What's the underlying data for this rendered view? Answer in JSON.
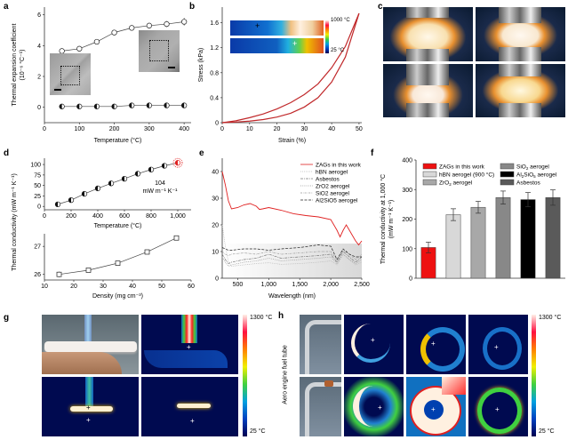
{
  "panel_labels": [
    "a",
    "b",
    "c",
    "d",
    "e",
    "f",
    "g",
    "h"
  ],
  "chart_data": [
    {
      "id": "a",
      "type": "line",
      "title": "",
      "xlabel": "Temperature (°C)",
      "ylabel": "Thermal expansion coefficient",
      "ylabel2": "(10⁻⁶ °C⁻¹)",
      "xlim": [
        0,
        420
      ],
      "ylim": [
        -1,
        6.5
      ],
      "xticks": [
        0,
        100,
        200,
        300,
        400
      ],
      "yticks": [
        0,
        2,
        4,
        6
      ],
      "series": [
        {
          "name": "upper",
          "marker": "open-circle",
          "x": [
            50,
            100,
            150,
            200,
            250,
            300,
            350,
            400
          ],
          "y": [
            3.65,
            3.8,
            4.25,
            4.85,
            5.15,
            5.3,
            5.4,
            5.55
          ],
          "err": [
            0.15,
            0.15,
            0.15,
            0.15,
            0.15,
            0.15,
            0.2,
            0.25
          ]
        },
        {
          "name": "lower",
          "marker": "half-filled-circle",
          "x": [
            50,
            100,
            150,
            200,
            250,
            300,
            350,
            400
          ],
          "y": [
            0.05,
            0.05,
            0.05,
            0.05,
            0.12,
            0.12,
            0.12,
            0.12
          ]
        }
      ]
    },
    {
      "id": "b",
      "type": "line",
      "xlabel": "Strain (%)",
      "ylabel": "Stress (kPa)",
      "xlim": [
        0,
        51
      ],
      "ylim": [
        0,
        1.85
      ],
      "xticks": [
        0,
        10,
        20,
        30,
        40,
        50
      ],
      "yticks": [
        0,
        0.4,
        0.8,
        1.2,
        1.6
      ],
      "inset_colorbar": {
        "max": "1000 °C",
        "min": "25 °C"
      },
      "series": [
        {
          "name": "loading",
          "x": [
            0,
            5,
            10,
            15,
            20,
            25,
            30,
            35,
            40,
            45,
            50
          ],
          "y": [
            0,
            0.01,
            0.025,
            0.05,
            0.09,
            0.15,
            0.25,
            0.4,
            0.65,
            1.05,
            1.75
          ]
        },
        {
          "name": "unloading",
          "x": [
            0,
            5,
            10,
            15,
            20,
            25,
            30,
            35,
            40,
            45,
            50
          ],
          "y": [
            0,
            0.03,
            0.08,
            0.14,
            0.22,
            0.32,
            0.45,
            0.62,
            0.88,
            1.22,
            1.75
          ]
        }
      ]
    },
    {
      "id": "d-top",
      "type": "line",
      "xlabel": "Temperature (°C)",
      "ylabel": "Thermal conductivity (mW m⁻¹ K⁻¹)",
      "xlim": [
        0,
        1100
      ],
      "ylim": [
        -8,
        115
      ],
      "xticks": [
        0,
        200,
        400,
        600,
        800,
        1000
      ],
      "xticklabels": [
        "0",
        "200",
        "400",
        "600",
        "800",
        "1,000"
      ],
      "yticks": [
        0,
        25,
        50,
        75,
        100
      ],
      "annotation": {
        "value": "104",
        "unit": "mW m⁻¹ K⁻¹"
      },
      "series": [
        {
          "name": "ZAG",
          "x": [
            100,
            200,
            300,
            400,
            500,
            600,
            700,
            800,
            900,
            1000
          ],
          "y": [
            5,
            15,
            30,
            43,
            55,
            66,
            78,
            88,
            97,
            104
          ]
        }
      ]
    },
    {
      "id": "d-bottom",
      "type": "line",
      "xlabel": "Density (mg cm⁻³)",
      "ylabel": "",
      "xlim": [
        10,
        60
      ],
      "ylim": [
        25.8,
        27.45
      ],
      "xticks": [
        10,
        20,
        30,
        40,
        50,
        60
      ],
      "yticks": [
        26,
        27
      ],
      "series": [
        {
          "name": "density",
          "marker": "open-square",
          "x": [
            15,
            25,
            35,
            45,
            55
          ],
          "y": [
            26.0,
            26.15,
            26.4,
            26.8,
            27.3
          ],
          "err": [
            0.1,
            0.08,
            0.05,
            0.04,
            0.04
          ]
        }
      ]
    },
    {
      "id": "e",
      "type": "line",
      "xlabel": "Wavelength (nm)",
      "ylabel": "",
      "xlim": [
        250,
        2500
      ],
      "ylim": [
        0,
        45
      ],
      "xticks": [
        500,
        1000,
        1500,
        2000,
        2500
      ],
      "xticklabels": [
        "500",
        "1,000",
        "1,500",
        "2,000",
        "2,500"
      ],
      "yticks": [
        0,
        10,
        20,
        30,
        40
      ],
      "legend_position": "top-right",
      "series": [
        {
          "name": "ZAGs in this work",
          "style": "solid",
          "color": "#e02020",
          "x": [
            250,
            300,
            350,
            400,
            500,
            600,
            700,
            800,
            850,
            900,
            1000,
            1200,
            1400,
            1600,
            1800,
            2000,
            2050,
            2100,
            2150,
            2200,
            2250,
            2300,
            2350,
            2400,
            2450,
            2500
          ],
          "y": [
            40,
            35,
            29,
            26,
            26.5,
            27.5,
            28,
            27,
            25.8,
            26,
            26.5,
            25.5,
            24.2,
            23.5,
            23,
            22,
            20,
            18,
            15.5,
            18,
            20,
            18,
            16,
            14,
            12.5,
            14
          ]
        },
        {
          "name": "hBN aerogel",
          "style": "dotted-light",
          "color": "#bbbbbb",
          "x": [
            250,
            300,
            350,
            400,
            600,
            800,
            1000,
            1200,
            1500,
            1800,
            2000,
            2100,
            2200,
            2300,
            2400,
            2500
          ],
          "y": [
            20,
            12,
            6,
            4.5,
            5,
            5.5,
            5.8,
            5.2,
            5.5,
            6,
            6.5,
            5,
            9,
            7,
            5,
            6
          ]
        },
        {
          "name": "Asbestos",
          "style": "dashdot",
          "color": "#777777",
          "x": [
            250,
            300,
            350,
            400,
            600,
            800,
            1000,
            1200,
            1500,
            1800,
            2000,
            2100,
            2200,
            2300,
            2400,
            2500
          ],
          "y": [
            9,
            7,
            5.5,
            6,
            7,
            7.5,
            9,
            7.5,
            8,
            8.5,
            9,
            6,
            10,
            8,
            6,
            8
          ]
        },
        {
          "name": "ZrO2 aerogel",
          "style": "dotted",
          "color": "#999999",
          "x": [
            250,
            300,
            350,
            400,
            600,
            800,
            1000,
            1200,
            1500,
            1800,
            2000,
            2100,
            2200,
            2300,
            2400,
            2500
          ],
          "y": [
            8,
            6,
            4.5,
            5,
            6,
            6.5,
            7.5,
            6.5,
            7,
            7.5,
            8,
            5.5,
            9,
            7,
            5.5,
            7
          ]
        },
        {
          "name": "SiO2 aerogel",
          "style": "dashdot-light",
          "color": "#999999",
          "x": [
            250,
            300,
            350,
            400,
            600,
            800,
            1000,
            1200,
            1500,
            1800,
            2000,
            2100,
            2200,
            2300,
            2400,
            2500
          ],
          "y": [
            10,
            9,
            8.5,
            9,
            9.5,
            9,
            10,
            9,
            9.5,
            10,
            10,
            7,
            10.5,
            9,
            7,
            9
          ]
        },
        {
          "name": "Al2SiO5 aerogel",
          "style": "dashed",
          "color": "#222222",
          "x": [
            250,
            300,
            350,
            400,
            600,
            800,
            1000,
            1200,
            1500,
            1800,
            2000,
            2100,
            2200,
            2300,
            2400,
            2500
          ],
          "y": [
            11.5,
            11,
            10.5,
            10.5,
            11,
            11,
            10.5,
            11,
            11.5,
            12.5,
            12,
            7,
            11,
            9,
            8,
            8
          ]
        }
      ]
    },
    {
      "id": "f",
      "type": "bar",
      "ylabel": "Thermal conductivity at 1,000 °C",
      "ylabel2": "(mW m⁻¹ K⁻¹)",
      "ylim": [
        0,
        400
      ],
      "yticks": [
        0,
        100,
        200,
        300,
        400
      ],
      "categories": [
        "ZAGs in this work",
        "hBN aerogel (900 °C)",
        "ZrO2 aerogel",
        "SiO2 aerogel",
        "Al2SiO5 aerogel",
        "Asbestos"
      ],
      "values": [
        104,
        215,
        240,
        273,
        266,
        273
      ],
      "errors": [
        18,
        20,
        20,
        22,
        24,
        26
      ],
      "colors": [
        "#ee1111",
        "#d8d8d8",
        "#a8a8a8",
        "#888888",
        "#000000",
        "#5a5a5a"
      ],
      "legend": [
        {
          "label": "ZAGs in this work",
          "sub": ""
        },
        {
          "label": "hBN aerogel (900 °C)",
          "sub": ""
        },
        {
          "label": "ZrO",
          "sub": "2",
          "tail": " aerogel"
        },
        {
          "label": "SiO",
          "sub": "2",
          "tail": " aerogel"
        },
        {
          "label": "Al",
          "sub": "2",
          "mid": "SiO",
          "sub2": "5",
          "tail": " aerogel"
        },
        {
          "label": "Asbestos",
          "sub": ""
        }
      ]
    }
  ],
  "panel_g": {
    "colorbar_max": "1300 °C",
    "colorbar_min": "25 °C"
  },
  "panel_h": {
    "side_label": "Aero engine fuel tube",
    "colorbar_max": "1300 °C",
    "colorbar_min": "25 °C"
  }
}
